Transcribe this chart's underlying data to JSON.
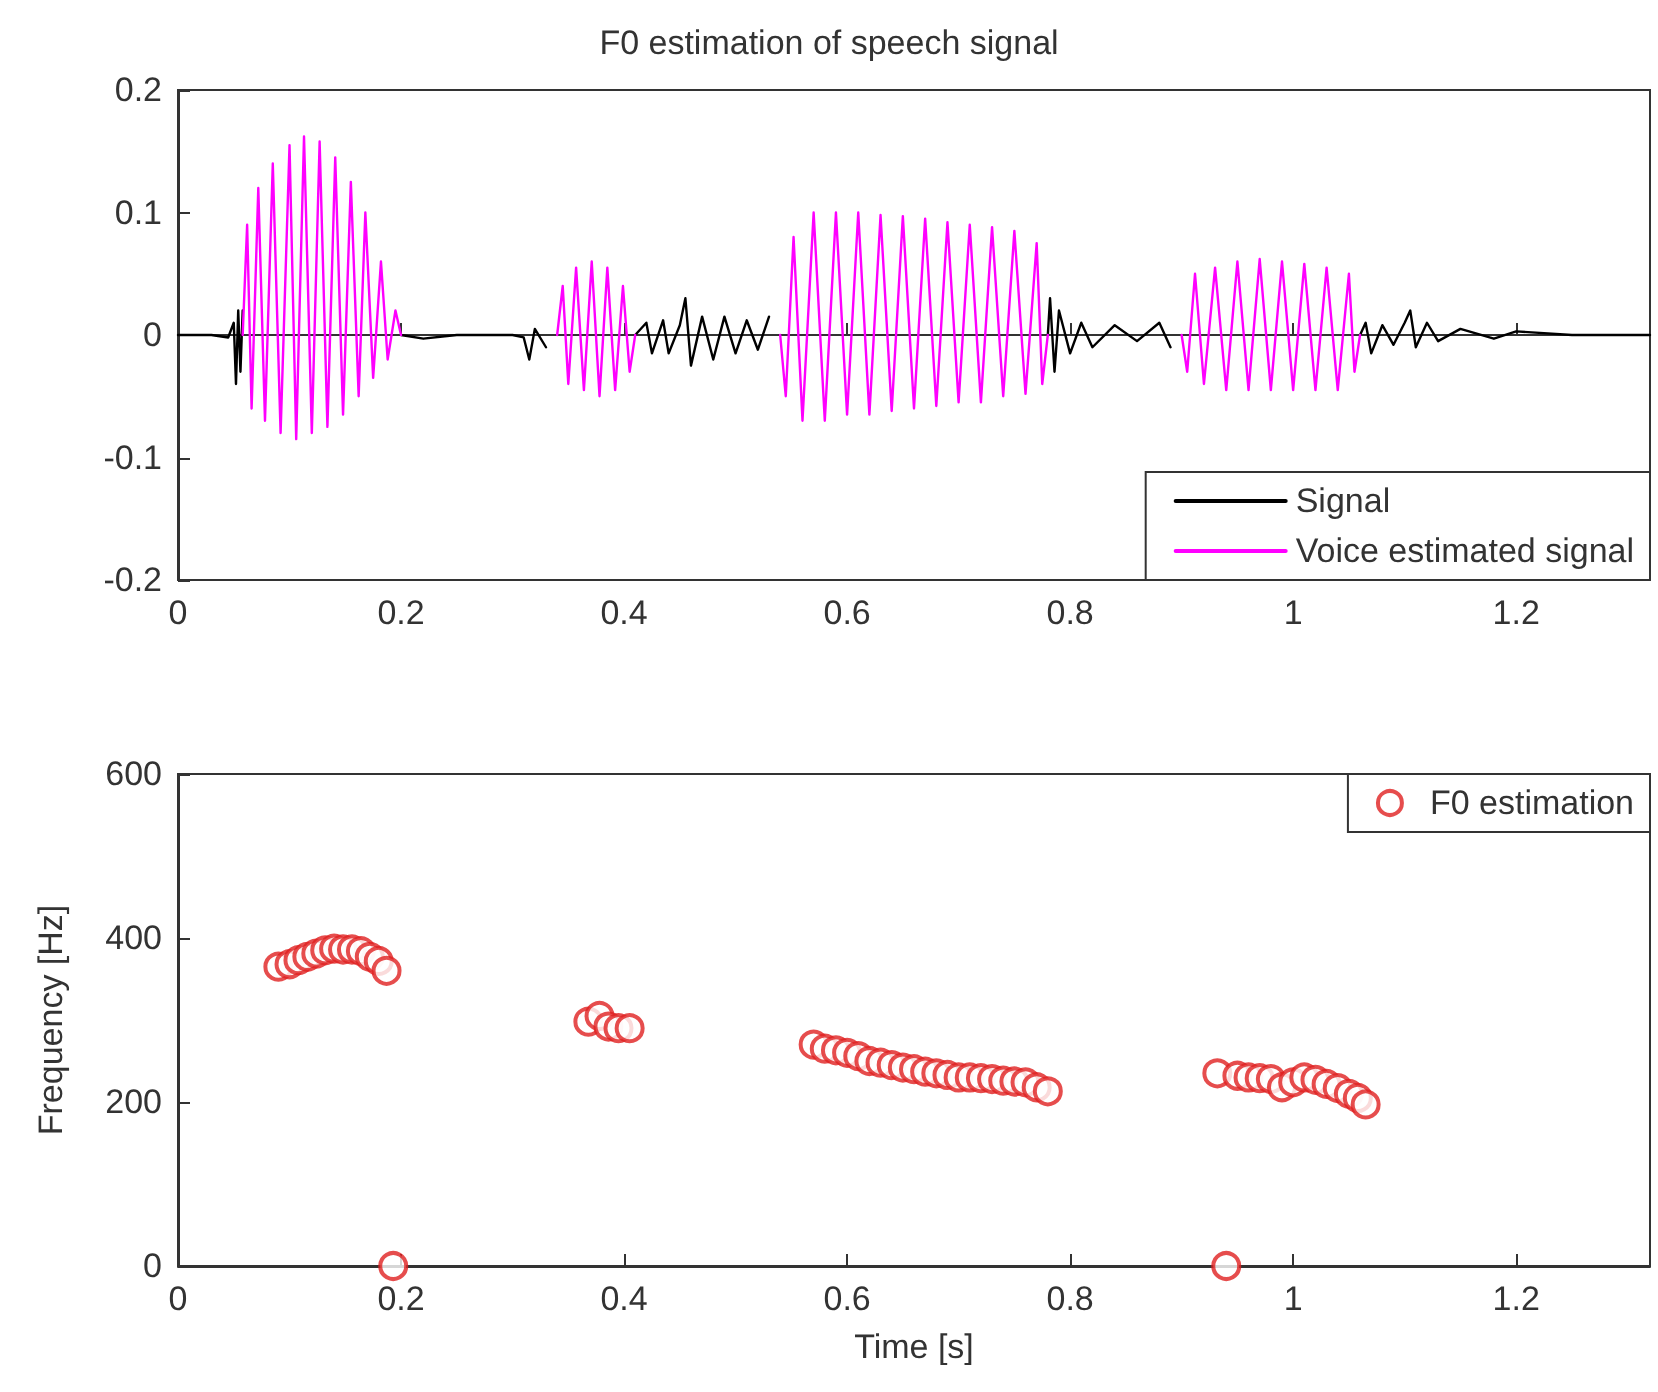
{
  "chart_data": [
    {
      "type": "line",
      "title": "F0 estimation of speech signal",
      "xlim": [
        0,
        1.32
      ],
      "xticks": [
        0,
        0.2,
        0.4,
        0.6,
        0.8,
        1,
        1.2
      ],
      "ylim": [
        -0.2,
        0.2
      ],
      "yticks": [
        -0.2,
        -0.1,
        0,
        0.1,
        0.2
      ],
      "legend": "bottom right",
      "marker": "none",
      "line_style": "solid",
      "series": [
        {
          "name": "Signal",
          "color": "#000000",
          "x": [
            0,
            0.03,
            0.045,
            0.05,
            0.052,
            0.054,
            0.056,
            0.058,
            0.06,
            0.2,
            0.22,
            0.25,
            0.3,
            0.31,
            0.315,
            0.32,
            0.33,
            0.34,
            0.41,
            0.42,
            0.425,
            0.435,
            0.44,
            0.45,
            0.455,
            0.46,
            0.47,
            0.48,
            0.49,
            0.5,
            0.51,
            0.52,
            0.53,
            0.54,
            0.78,
            0.782,
            0.786,
            0.79,
            0.8,
            0.81,
            0.82,
            0.84,
            0.86,
            0.88,
            0.89,
            0.9,
            1.06,
            1.065,
            1.07,
            1.08,
            1.09,
            1.1,
            1.105,
            1.11,
            1.12,
            1.13,
            1.15,
            1.18,
            1.2,
            1.25,
            1.32
          ],
          "values": [
            0,
            0,
            -0.002,
            0.01,
            -0.04,
            0.02,
            -0.03,
            0.02,
            null,
            0,
            -0.003,
            0,
            0,
            -0.002,
            -0.02,
            0.005,
            -0.01,
            null,
            0,
            0.01,
            -0.015,
            0.012,
            -0.015,
            0.008,
            0.03,
            -0.025,
            0.015,
            -0.02,
            0.015,
            -0.015,
            0.012,
            -0.012,
            0.015,
            null,
            0,
            0.03,
            -0.03,
            0.02,
            -0.015,
            0.01,
            -0.01,
            0.008,
            -0.005,
            0.01,
            -0.01,
            null,
            0,
            0.01,
            -0.015,
            0.008,
            -0.008,
            0.01,
            0.02,
            -0.01,
            0.01,
            -0.005,
            0.005,
            -0.003,
            0.003,
            0,
            0
          ]
        },
        {
          "name": "Voice estimated signal",
          "color": "#ff00ff",
          "x": [
            0.058,
            0.062,
            0.066,
            0.072,
            0.078,
            0.085,
            0.092,
            0.1,
            0.106,
            0.113,
            0.12,
            0.127,
            0.134,
            0.141,
            0.148,
            0.155,
            0.162,
            0.168,
            0.175,
            0.182,
            0.188,
            0.195,
            0.2,
            0.27,
            0.34,
            0.345,
            0.35,
            0.357,
            0.364,
            0.371,
            0.378,
            0.385,
            0.392,
            0.399,
            0.405,
            0.41,
            0.48,
            0.54,
            0.545,
            0.552,
            0.56,
            0.57,
            0.58,
            0.59,
            0.6,
            0.61,
            0.62,
            0.63,
            0.64,
            0.65,
            0.66,
            0.67,
            0.68,
            0.69,
            0.7,
            0.71,
            0.72,
            0.73,
            0.74,
            0.75,
            0.76,
            0.77,
            0.775,
            0.78,
            0.84,
            0.9,
            0.905,
            0.912,
            0.92,
            0.93,
            0.94,
            0.95,
            0.96,
            0.97,
            0.98,
            0.99,
            1,
            1.01,
            1.02,
            1.03,
            1.04,
            1.05,
            1.055,
            1.06
          ],
          "values": [
            0,
            0.09,
            -0.06,
            0.12,
            -0.07,
            0.14,
            -0.08,
            0.155,
            -0.085,
            0.162,
            -0.08,
            0.158,
            -0.075,
            0.145,
            -0.065,
            0.125,
            -0.05,
            0.1,
            -0.035,
            0.06,
            -0.02,
            0.02,
            0,
            null,
            0,
            0.04,
            -0.04,
            0.055,
            -0.045,
            0.06,
            -0.05,
            0.055,
            -0.045,
            0.04,
            -0.03,
            0,
            null,
            0,
            -0.05,
            0.08,
            -0.07,
            0.1,
            -0.07,
            0.1,
            -0.065,
            0.1,
            -0.065,
            0.098,
            -0.062,
            0.097,
            -0.06,
            0.095,
            -0.058,
            0.092,
            -0.055,
            0.09,
            -0.055,
            0.088,
            -0.05,
            0.085,
            -0.048,
            0.075,
            -0.04,
            0,
            null,
            0,
            -0.03,
            0.05,
            -0.04,
            0.055,
            -0.045,
            0.06,
            -0.045,
            0.062,
            -0.045,
            0.06,
            -0.045,
            0.058,
            -0.045,
            0.055,
            -0.045,
            0.05,
            -0.03,
            0
          ]
        }
      ]
    },
    {
      "type": "scatter",
      "xlabel": "Time [s]",
      "ylabel": "Frequency [Hz]",
      "xlim": [
        0,
        1.32
      ],
      "xticks": [
        0,
        0.2,
        0.4,
        0.6,
        0.8,
        1,
        1.2
      ],
      "ylim": [
        0,
        600
      ],
      "yticks": [
        0,
        200,
        400,
        600
      ],
      "legend": "top right",
      "marker": "circle",
      "series": [
        {
          "name": "F0 estimation",
          "color": "#e02020",
          "x": [
            0.09,
            0.1,
            0.108,
            0.116,
            0.124,
            0.132,
            0.14,
            0.148,
            0.156,
            0.164,
            0.172,
            0.18,
            0.187,
            0.193,
            0.368,
            0.378,
            0.386,
            0.395,
            0.405,
            0.57,
            0.58,
            0.59,
            0.6,
            0.61,
            0.62,
            0.63,
            0.64,
            0.65,
            0.66,
            0.67,
            0.68,
            0.69,
            0.7,
            0.71,
            0.72,
            0.73,
            0.74,
            0.75,
            0.76,
            0.77,
            0.78,
            0.932,
            0.94,
            0.95,
            0.96,
            0.97,
            0.98,
            0.99,
            1,
            1.01,
            1.02,
            1.03,
            1.04,
            1.05,
            1.058,
            1.065
          ],
          "values": [
            365,
            368,
            373,
            377,
            381,
            385,
            387,
            386,
            386,
            384,
            377,
            372,
            360,
            0,
            298,
            305,
            292,
            290,
            290,
            270,
            265,
            263,
            260,
            256,
            250,
            248,
            245,
            242,
            240,
            237,
            235,
            233,
            230,
            230,
            229,
            228,
            226,
            225,
            224,
            218,
            213,
            235,
            0,
            232,
            230,
            229,
            228,
            218,
            224,
            230,
            227,
            222,
            217,
            210,
            205,
            197
          ]
        }
      ]
    }
  ]
}
